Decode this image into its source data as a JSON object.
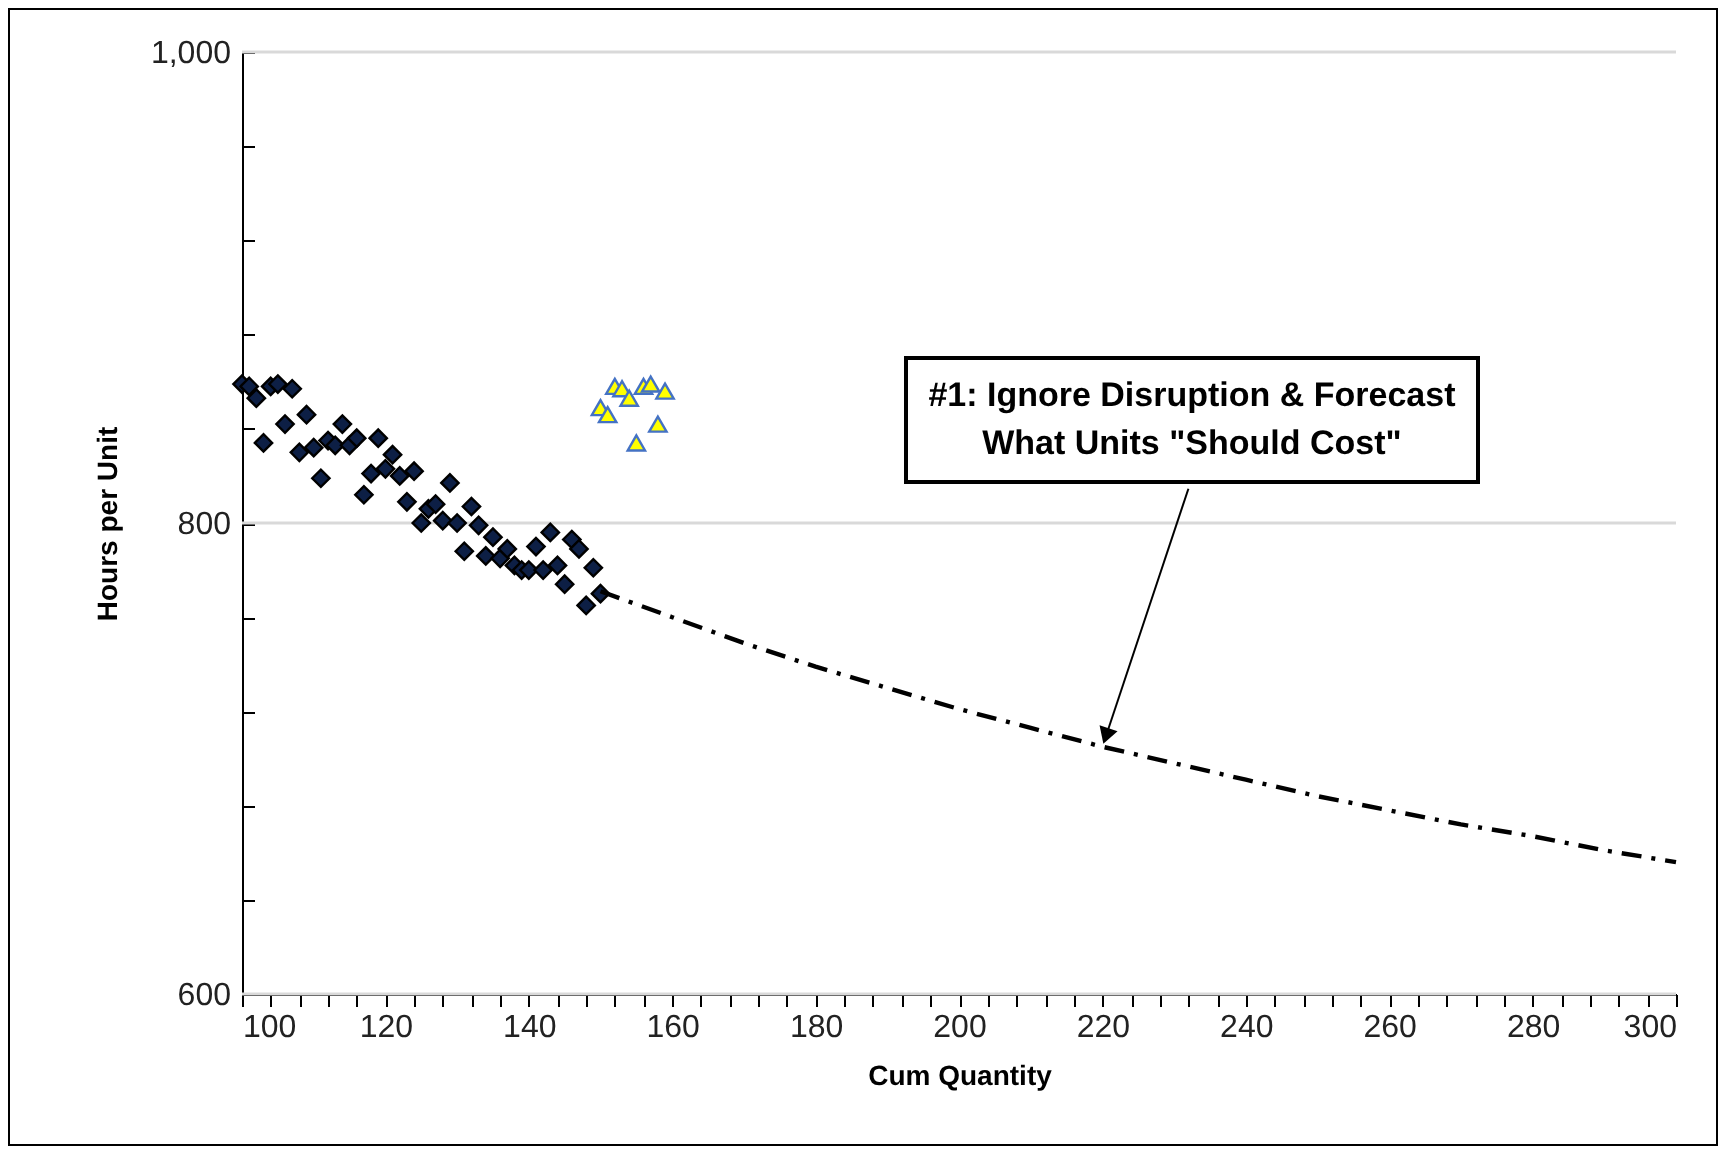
{
  "chart_data": {
    "type": "scatter",
    "xlabel": "Cum Quantity",
    "ylabel": "Hours per Unit",
    "xlim": [
      100,
      300
    ],
    "ylim": [
      600,
      1000
    ],
    "xticks": [
      100,
      {
        "value": 104,
        "label": null
      },
      {
        "value": 108,
        "label": null
      },
      {
        "value": 112,
        "label": null
      },
      {
        "value": 116,
        "label": null
      },
      120,
      {
        "value": 124,
        "label": null
      },
      {
        "value": 128,
        "label": null
      },
      {
        "value": 132,
        "label": null
      },
      {
        "value": 136,
        "label": null
      },
      140,
      {
        "value": 144,
        "label": null
      },
      {
        "value": 148,
        "label": null
      },
      {
        "value": 152,
        "label": null
      },
      {
        "value": 156,
        "label": null
      },
      160,
      {
        "value": 164,
        "label": null
      },
      {
        "value": 168,
        "label": null
      },
      {
        "value": 172,
        "label": null
      },
      {
        "value": 176,
        "label": null
      },
      180,
      {
        "value": 184,
        "label": null
      },
      {
        "value": 188,
        "label": null
      },
      {
        "value": 192,
        "label": null
      },
      {
        "value": 196,
        "label": null
      },
      200,
      {
        "value": 204,
        "label": null
      },
      {
        "value": 208,
        "label": null
      },
      {
        "value": 212,
        "label": null
      },
      {
        "value": 216,
        "label": null
      },
      220,
      {
        "value": 224,
        "label": null
      },
      {
        "value": 228,
        "label": null
      },
      {
        "value": 232,
        "label": null
      },
      {
        "value": 236,
        "label": null
      },
      240,
      {
        "value": 244,
        "label": null
      },
      {
        "value": 248,
        "label": null
      },
      {
        "value": 252,
        "label": null
      },
      {
        "value": 256,
        "label": null
      },
      260,
      {
        "value": 264,
        "label": null
      },
      {
        "value": 268,
        "label": null
      },
      {
        "value": 272,
        "label": null
      },
      {
        "value": 276,
        "label": null
      },
      280,
      {
        "value": 284,
        "label": null
      },
      {
        "value": 288,
        "label": null
      },
      {
        "value": 292,
        "label": null
      },
      {
        "value": 296,
        "label": null
      },
      300
    ],
    "yticks": [
      600,
      {
        "value": 640,
        "label": null
      },
      {
        "value": 680,
        "label": null
      },
      {
        "value": 720,
        "label": null
      },
      {
        "value": 760,
        "label": null
      },
      800,
      {
        "value": 840,
        "label": null
      },
      {
        "value": 880,
        "label": null
      },
      {
        "value": 920,
        "label": null
      },
      {
        "value": 960,
        "label": null
      },
      {
        "value": 1000,
        "label": "1,000"
      }
    ],
    "grid": true,
    "series": [
      {
        "color": "#0d1f45",
        "marker": "diamond",
        "x": [
          100,
          101,
          102,
          103,
          104,
          105,
          106,
          107,
          108,
          109,
          110,
          111,
          112,
          113,
          114,
          115,
          116,
          117,
          118,
          119,
          120,
          121,
          122,
          123,
          124,
          125,
          126,
          127,
          128,
          129,
          130,
          131,
          132,
          133,
          134,
          135,
          136,
          137,
          138,
          139,
          140,
          141,
          142,
          143,
          144,
          145,
          146,
          147,
          148,
          149,
          150
        ],
        "values": [
          859,
          858,
          853,
          834,
          858,
          859,
          842,
          857,
          830,
          846,
          832,
          819,
          835,
          833,
          842,
          833,
          836,
          812,
          821,
          836,
          823,
          829,
          820,
          809,
          822,
          800,
          806,
          808,
          801,
          817,
          800,
          788,
          807,
          799,
          786,
          794,
          785,
          789,
          782,
          780,
          780,
          790,
          780,
          796,
          782,
          774,
          793,
          789,
          765,
          781,
          770
        ]
      },
      {
        "color": "#ffff00",
        "marker": "triangle",
        "x": [
          150,
          151,
          152,
          153,
          154,
          155,
          156,
          157,
          158,
          159
        ],
        "values": [
          849,
          846,
          858,
          857,
          853,
          834,
          858,
          859,
          842,
          856
        ]
      },
      {
        "type": "line",
        "color": "#000000",
        "line_style": "dashed",
        "marker": "none",
        "x": [
          150,
          160,
          170,
          180,
          190,
          200,
          210,
          220,
          230,
          240,
          250,
          260,
          270,
          280,
          290,
          300
        ],
        "values": [
          771,
          760,
          749,
          739,
          730,
          721,
          713,
          705,
          698,
          691,
          684,
          678,
          672,
          667,
          661,
          656
        ]
      }
    ],
    "annotations": [
      {
        "text": "#1: Ignore Disruption & Forecast\nWhat Units \"Should Cost\"",
        "x": 220,
        "y": 705
      }
    ]
  }
}
